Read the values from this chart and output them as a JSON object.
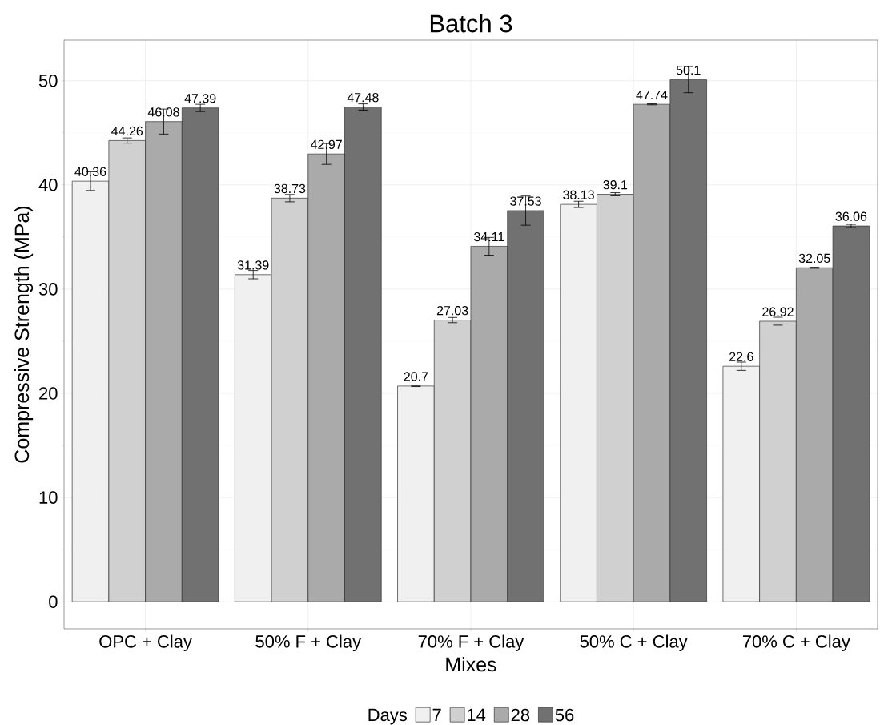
{
  "chart_data": {
    "type": "bar",
    "title": "Batch 3",
    "xlabel": "Mixes",
    "ylabel": "Compressive Strength (MPa)",
    "legend_title": "Days",
    "categories": [
      "OPC + Clay",
      "50% F + Clay",
      "70% F + Clay",
      "50% C + Clay",
      "70% C + Clay"
    ],
    "series": [
      {
        "name": "7",
        "color": "#f0f0f0",
        "values": [
          40.36,
          31.39,
          20.7,
          38.13,
          22.6
        ],
        "errors": [
          0.9,
          0.4,
          0.05,
          0.3,
          0.4
        ]
      },
      {
        "name": "14",
        "color": "#d0d0d0",
        "values": [
          44.26,
          38.73,
          27.03,
          39.1,
          26.92
        ],
        "errors": [
          0.25,
          0.35,
          0.25,
          0.15,
          0.38
        ]
      },
      {
        "name": "28",
        "color": "#aaaaaa",
        "values": [
          46.08,
          42.97,
          34.11,
          47.74,
          32.05
        ],
        "errors": [
          1.2,
          1.0,
          0.85,
          0.05,
          0.05
        ]
      },
      {
        "name": "56",
        "color": "#717171",
        "values": [
          47.39,
          47.48,
          37.53,
          50.1,
          36.06
        ],
        "errors": [
          0.35,
          0.3,
          1.4,
          1.25,
          0.15
        ]
      }
    ],
    "ylim": [
      -2.6,
      53.9
    ],
    "yticks": [
      0,
      10,
      20,
      30,
      40,
      50
    ],
    "grid": true,
    "legend": "bottom",
    "data_labels": true
  }
}
